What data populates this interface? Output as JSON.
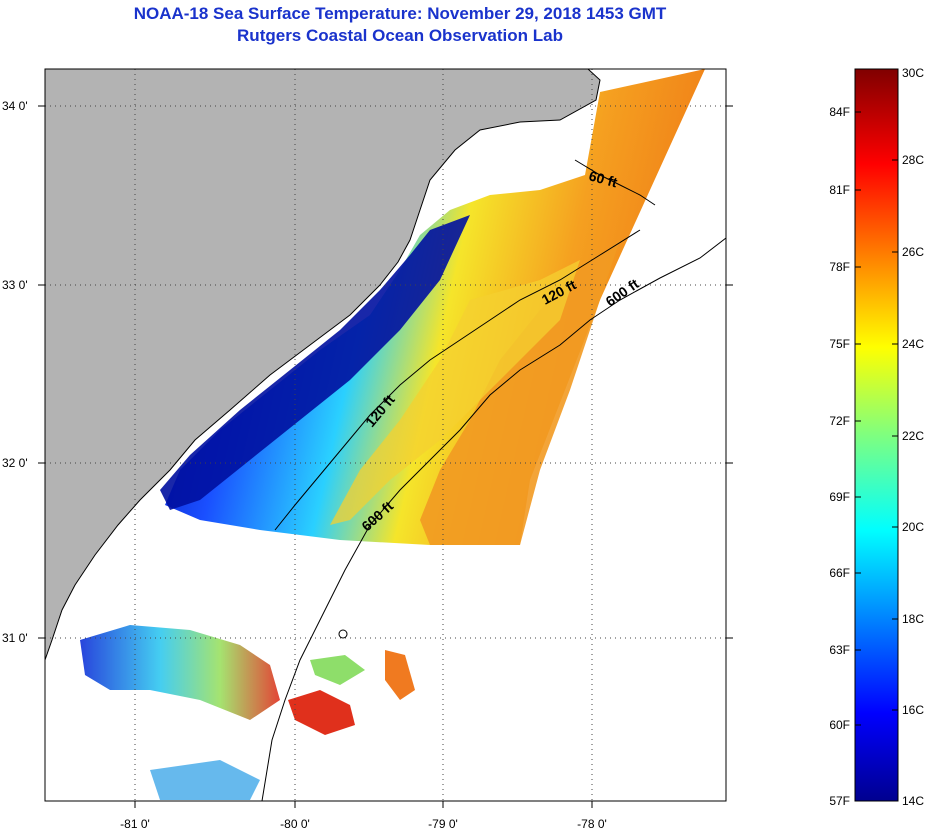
{
  "title": {
    "line1": "NOAA-18 Sea Surface Temperature:  November 29, 2018 1453 GMT",
    "line2": "Rutgers Coastal Ocean Observation Lab"
  },
  "axes": {
    "lat_labels": [
      "34 0'",
      "33 0'",
      "32 0'",
      "31 0'"
    ],
    "lat_values": [
      34,
      33,
      32,
      31
    ],
    "lon_labels": [
      "-81 0'",
      "-80 0'",
      "-79 0'",
      "-78 0'"
    ],
    "lon_values": [
      -81,
      -80,
      -79,
      -78
    ]
  },
  "contours": {
    "c60": "60 ft",
    "c120a": "120 ft",
    "c120b": "120 ft",
    "c600a": "600 ft",
    "c600b": "600 ft"
  },
  "colorbar": {
    "fahrenheit": [
      "84F",
      "81F",
      "78F",
      "75F",
      "72F",
      "69F",
      "66F",
      "63F",
      "60F",
      "57F"
    ],
    "celsius": [
      "30C",
      "28C",
      "26C",
      "24C",
      "22C",
      "20C",
      "18C",
      "16C",
      "14C"
    ]
  },
  "colors": {
    "land": "#b3b3b3",
    "title": "#1a33cc"
  }
}
